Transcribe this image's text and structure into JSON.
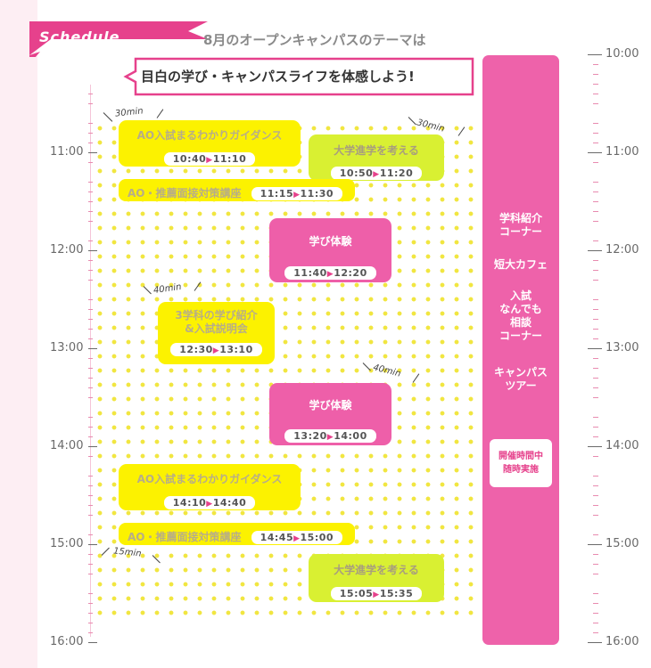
{
  "header": {
    "flag_label": "Schedule",
    "subtitle": "8月のオープンキャンパスのテーマは",
    "theme": "目白の学び・キャンパスライフを体感しよう!"
  },
  "colors": {
    "pink": "#ee5fa9",
    "yellow": "#fcf200",
    "lime": "#d9f032",
    "dots": "#f1e640"
  },
  "hours_left": [
    "11:00",
    "12:00",
    "13:00",
    "14:00",
    "15:00",
    "16:00"
  ],
  "hours_right": [
    "10:00",
    "11:00",
    "12:00",
    "13:00",
    "14:00",
    "15:00",
    "16:00"
  ],
  "events": [
    {
      "title": "AO入試まるわかりガイダンス",
      "start": "10:40",
      "end": "11:10"
    },
    {
      "title": "大学進学を考える",
      "start": "10:50",
      "end": "11:20"
    },
    {
      "title": "AO・推薦面接対策講座",
      "start": "11:15",
      "end": "11:30"
    },
    {
      "title": "学び体験",
      "start": "11:40",
      "end": "12:20"
    },
    {
      "title": "3学科の学び紹介",
      "title2": "&入試説明会",
      "start": "12:30",
      "end": "13:10"
    },
    {
      "title": "学び体験",
      "start": "13:20",
      "end": "14:00"
    },
    {
      "title": "AO入試まるわかりガイダンス",
      "start": "14:10",
      "end": "14:40"
    },
    {
      "title": "AO・推薦面接対策講座",
      "start": "14:45",
      "end": "15:00"
    },
    {
      "title": "大学進学を考える",
      "start": "15:05",
      "end": "15:35"
    }
  ],
  "durations": [
    "30min",
    "30min",
    "40min",
    "40min",
    "15min"
  ],
  "side": {
    "item1": [
      "学科紹介",
      "コーナー"
    ],
    "item2": [
      "短大カフェ"
    ],
    "item3": [
      "入試",
      "なんでも",
      "相談",
      "コーナー"
    ],
    "item4": [
      "キャンパス",
      "ツアー"
    ],
    "note": [
      "開催時間中",
      "随時実施"
    ]
  }
}
